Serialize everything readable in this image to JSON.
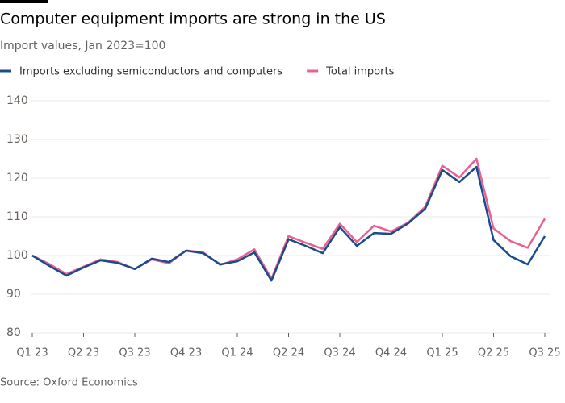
{
  "chart_data": {
    "type": "line",
    "title": "Computer equipment imports are strong in the US",
    "subtitle": "Import values, Jan 2023=100",
    "source": "Source: Oxford Economics",
    "categories": [
      "Q1 23",
      null,
      null,
      "Q2 23",
      null,
      null,
      "Q3 23",
      null,
      null,
      "Q4 23",
      null,
      null,
      "Q1 24",
      null,
      null,
      "Q2 24",
      null,
      null,
      "Q3 24",
      null,
      null,
      "Q4 24",
      null,
      null,
      "Q1 25",
      null,
      null,
      "Q2 25",
      null,
      null,
      "Q3 25"
    ],
    "series": [
      {
        "name": "Imports excluding semiconductors and computers",
        "color": "#1a4b8c",
        "values": [
          100,
          97.3,
          94.8,
          96.9,
          98.75,
          98.1,
          96.5,
          99.2,
          98.3,
          101.25,
          100.6,
          97.7,
          98.5,
          100.8,
          93.5,
          104.2,
          102.5,
          100.6,
          107.3,
          102.5,
          105.8,
          105.6,
          108.3,
          112.1,
          122.1,
          119,
          122.9,
          104,
          99.8,
          97.7,
          105
        ]
      },
      {
        "name": "Total imports",
        "color": "#e8608f",
        "values": [
          100,
          97.8,
          95.2,
          97.1,
          99,
          98.3,
          96.5,
          99,
          98,
          101.3,
          100.8,
          97.6,
          99,
          101.6,
          94,
          105,
          103.3,
          101.7,
          108.2,
          103.5,
          107.7,
          106.2,
          108.5,
          112.6,
          123.2,
          120.2,
          125,
          107,
          103.7,
          102,
          109.5
        ]
      }
    ],
    "ylim": [
      80,
      140
    ],
    "yticks": [
      80,
      90,
      100,
      110,
      120,
      130,
      140
    ],
    "grid": true
  }
}
